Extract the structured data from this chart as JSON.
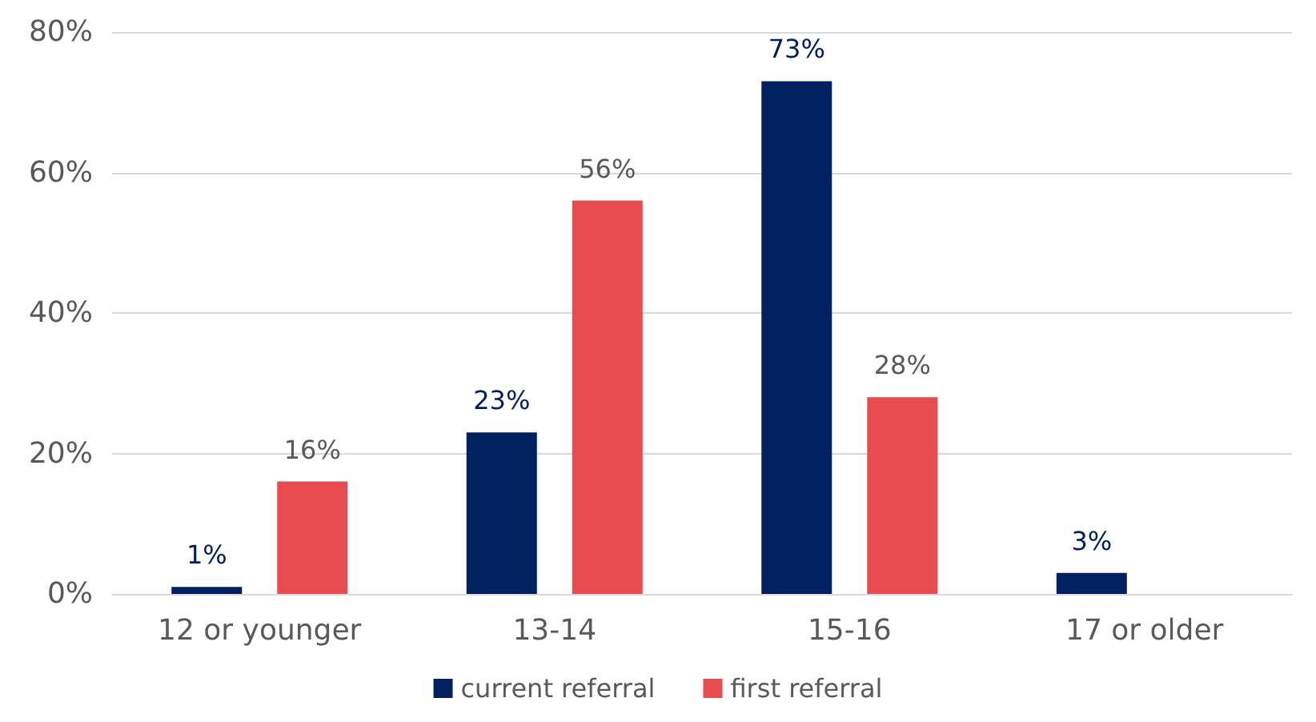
{
  "chart_data": {
    "type": "bar",
    "categories": [
      "12 or younger",
      "13-14",
      "15-16",
      "17 or older"
    ],
    "series": [
      {
        "name": "current referral",
        "color": "#002060",
        "values": [
          1,
          23,
          73,
          3
        ],
        "value_labels": [
          "1%",
          "23%",
          "73%",
          "3%"
        ]
      },
      {
        "name": "first referral",
        "color": "#e84c4e",
        "values": [
          16,
          56,
          28,
          null
        ],
        "value_labels": [
          "16%",
          "56%",
          "28%",
          null
        ]
      }
    ],
    "ylim": [
      0,
      80
    ],
    "yticks": [
      {
        "value": 0,
        "label": "0%"
      },
      {
        "value": 20,
        "label": "20%"
      },
      {
        "value": 40,
        "label": "40%"
      },
      {
        "value": 60,
        "label": "60%"
      },
      {
        "value": 80,
        "label": "80%"
      }
    ],
    "grid": "y",
    "legend": "bottom"
  }
}
